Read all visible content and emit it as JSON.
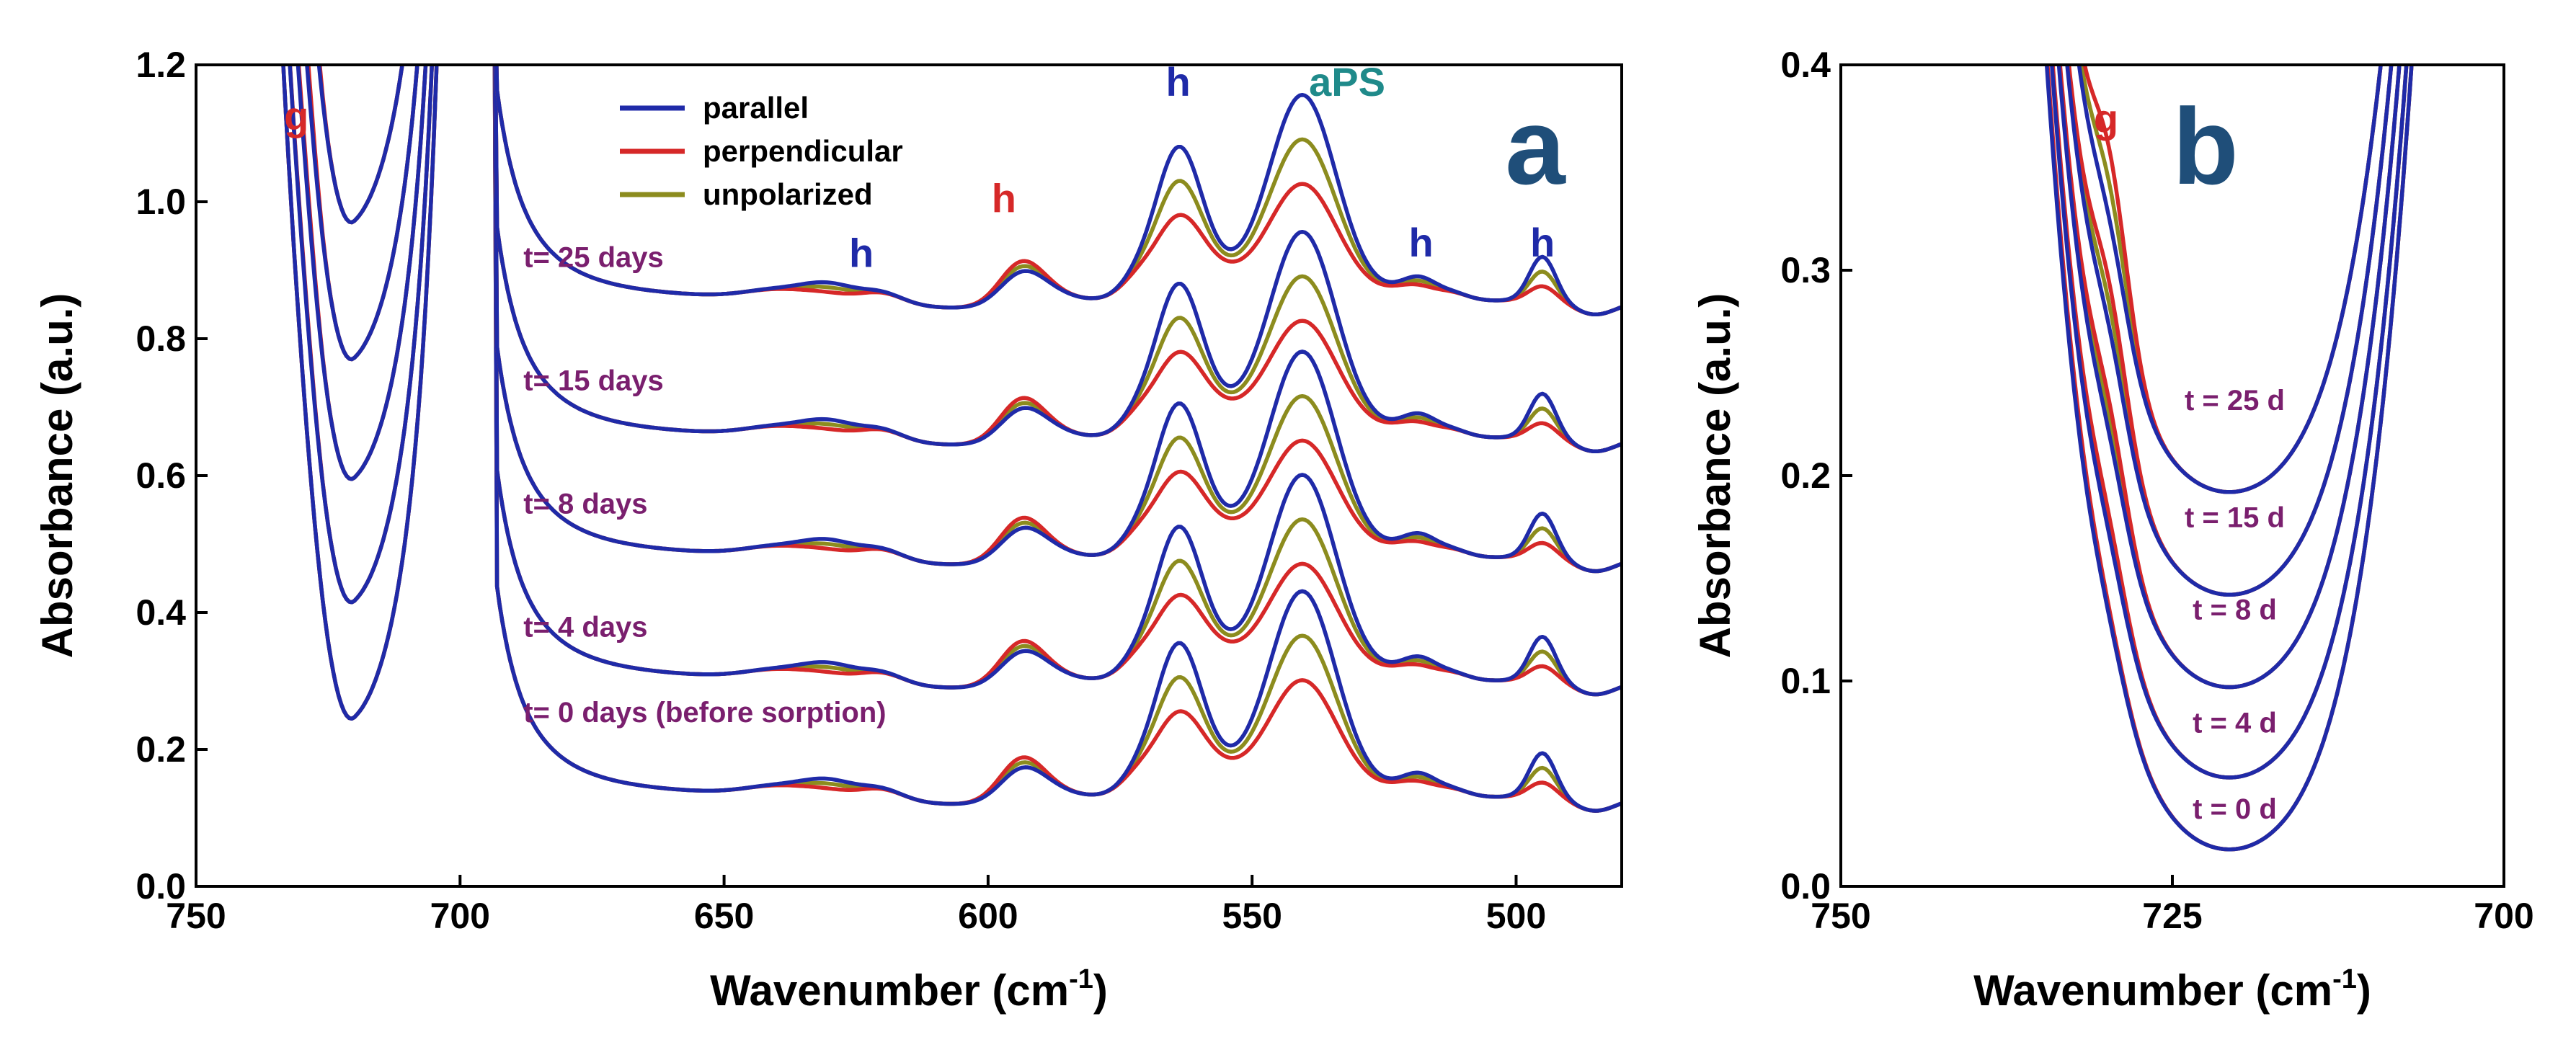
{
  "chart_data": [
    {
      "panel": "a",
      "type": "line",
      "panel_label": "a",
      "xlabel_main": "Wavenumber (cm",
      "xlabel_sup": "-1",
      "xlabel_close": ")",
      "ylabel": "Absorbance (a.u.)",
      "xlim": [
        750,
        480
      ],
      "ylim": [
        0.0,
        1.2
      ],
      "x_ticks": [
        750,
        700,
        650,
        600,
        550,
        500
      ],
      "x_tick_labels": [
        "750",
        "700",
        "650",
        "600",
        "550",
        "500"
      ],
      "y_ticks": [
        0.0,
        0.2,
        0.4,
        0.6,
        0.8,
        1.0,
        1.2
      ],
      "y_tick_labels": [
        "0.0",
        "0.2",
        "0.4",
        "0.6",
        "0.8",
        "1.0",
        "1.2"
      ],
      "colors": {
        "parallel": "#1f2aa8",
        "perpendicular": "#d62828",
        "unpolarized": "#8c8c1e"
      },
      "legend": [
        {
          "key": "parallel",
          "label": "parallel"
        },
        {
          "key": "perpendicular",
          "label": "perpendicular"
        },
        {
          "key": "unpolarized",
          "label": "unpolarized"
        }
      ],
      "series_labels": [
        {
          "text": "t= 25 days",
          "x": 688,
          "y": 0.905
        },
        {
          "text": "t= 15 days",
          "x": 688,
          "y": 0.725
        },
        {
          "text": "t= 8 days",
          "x": 688,
          "y": 0.545
        },
        {
          "text": "t= 4 days",
          "x": 688,
          "y": 0.365
        },
        {
          "text": "t= 0 days (before sorption)",
          "x": 688,
          "y": 0.24
        }
      ],
      "band_labels": [
        {
          "text": "g",
          "x": 731,
          "y": 1.105,
          "color": "#d62828"
        },
        {
          "text": "h",
          "x": 624,
          "y": 0.905,
          "color": "#1f2aa8"
        },
        {
          "text": "h",
          "x": 597,
          "y": 0.985,
          "color": "#d62828"
        },
        {
          "text": "h",
          "x": 564,
          "y": 1.155,
          "color": "#1f2aa8"
        },
        {
          "text": "aPS",
          "x": 532,
          "y": 1.155,
          "color": "#1f8a8a"
        },
        {
          "text": "h",
          "x": 518,
          "y": 0.92,
          "color": "#1f2aa8"
        },
        {
          "text": "h",
          "x": 495,
          "y": 0.92,
          "color": "#1f2aa8"
        }
      ],
      "curves": [
        {
          "time": "t = 0 days",
          "offset": 0.0,
          "parallel_peaks": {
            "g730": 0.0,
            "h630": 0.022,
            "h595": 0.035,
            "h564": 0.17,
            "aPS540": 0.26,
            "h518": 0.018,
            "h495": 0.055
          },
          "perpendicular_peaks": {
            "g730": 0.0,
            "h630": 0.008,
            "h595": 0.05,
            "h564": 0.07,
            "aPS540": 0.13,
            "h518": 0.006,
            "h495": 0.012
          }
        },
        {
          "time": "t = 4 days",
          "offset": 0.17,
          "parallel_peaks": {
            "g730": 0.004,
            "h630": 0.022,
            "h595": 0.035,
            "h564": 0.17,
            "aPS540": 0.26,
            "h518": 0.018,
            "h495": 0.055
          },
          "perpendicular_peaks": {
            "g730": 0.012,
            "h630": 0.008,
            "h595": 0.05,
            "h564": 0.07,
            "aPS540": 0.13,
            "h518": 0.006,
            "h495": 0.012
          }
        },
        {
          "time": "t = 8 days",
          "offset": 0.35,
          "parallel_peaks": {
            "g730": 0.008,
            "h630": 0.022,
            "h595": 0.035,
            "h564": 0.17,
            "aPS540": 0.26,
            "h518": 0.018,
            "h495": 0.055
          },
          "perpendicular_peaks": {
            "g730": 0.025,
            "h630": 0.008,
            "h595": 0.05,
            "h564": 0.07,
            "aPS540": 0.13,
            "h518": 0.006,
            "h495": 0.012
          }
        },
        {
          "time": "t = 15 days",
          "offset": 0.525,
          "parallel_peaks": {
            "g730": 0.012,
            "h630": 0.022,
            "h595": 0.035,
            "h564": 0.17,
            "aPS540": 0.26,
            "h518": 0.018,
            "h495": 0.055
          },
          "perpendicular_peaks": {
            "g730": 0.04,
            "h630": 0.008,
            "h595": 0.05,
            "h564": 0.07,
            "aPS540": 0.13,
            "h518": 0.006,
            "h495": 0.012
          }
        },
        {
          "time": "t = 25 days",
          "offset": 0.725,
          "parallel_peaks": {
            "g730": 0.018,
            "h630": 0.022,
            "h595": 0.035,
            "h564": 0.17,
            "aPS540": 0.26,
            "h518": 0.018,
            "h495": 0.055
          },
          "perpendicular_peaks": {
            "g730": 0.055,
            "h630": 0.008,
            "h595": 0.05,
            "h564": 0.07,
            "aPS540": 0.13,
            "h518": 0.006,
            "h495": 0.012
          }
        }
      ]
    },
    {
      "panel": "b",
      "type": "line",
      "panel_label": "b",
      "xlabel_main": "Wavenumber (cm",
      "xlabel_sup": "-1",
      "xlabel_close": ")",
      "ylabel": "Absorbance (a.u.)",
      "xlim": [
        750,
        700
      ],
      "ylim": [
        0.0,
        0.4
      ],
      "x_ticks": [
        750,
        725,
        700
      ],
      "x_tick_labels": [
        "750",
        "725",
        "700"
      ],
      "y_ticks": [
        0.0,
        0.1,
        0.2,
        0.3,
        0.4
      ],
      "y_tick_labels": [
        "0.0",
        "0.1",
        "0.2",
        "0.3",
        "0.4"
      ],
      "colors": {
        "parallel": "#1f2aa8",
        "perpendicular": "#d62828",
        "unpolarized": "#8c8c1e"
      },
      "series_labels": [
        {
          "text": "t = 25 d",
          "x": 720.3,
          "y": 0.232
        },
        {
          "text": "t = 15 d",
          "x": 720.3,
          "y": 0.175
        },
        {
          "text": "t = 8 d",
          "x": 720.3,
          "y": 0.13
        },
        {
          "text": "t = 4 d",
          "x": 720.3,
          "y": 0.075
        },
        {
          "text": "t = 0 d",
          "x": 720.3,
          "y": 0.033
        }
      ],
      "band_labels": [
        {
          "text": "g",
          "x": 730,
          "y": 0.367,
          "color": "#d62828"
        }
      ],
      "curves": [
        {
          "time": "t = 0 d",
          "min": 0.018,
          "g_parallel": 0.0,
          "g_perpendicular": 0.0
        },
        {
          "time": "t = 4 d",
          "min": 0.053,
          "g_parallel": 0.005,
          "g_perpendicular": 0.01
        },
        {
          "time": "t = 8 d",
          "min": 0.097,
          "g_parallel": 0.01,
          "g_perpendicular": 0.022
        },
        {
          "time": "t = 15 d",
          "min": 0.142,
          "g_parallel": 0.017,
          "g_perpendicular": 0.035
        },
        {
          "time": "t = 25 d",
          "min": 0.192,
          "g_parallel": 0.02,
          "g_perpendicular": 0.05
        }
      ]
    }
  ]
}
